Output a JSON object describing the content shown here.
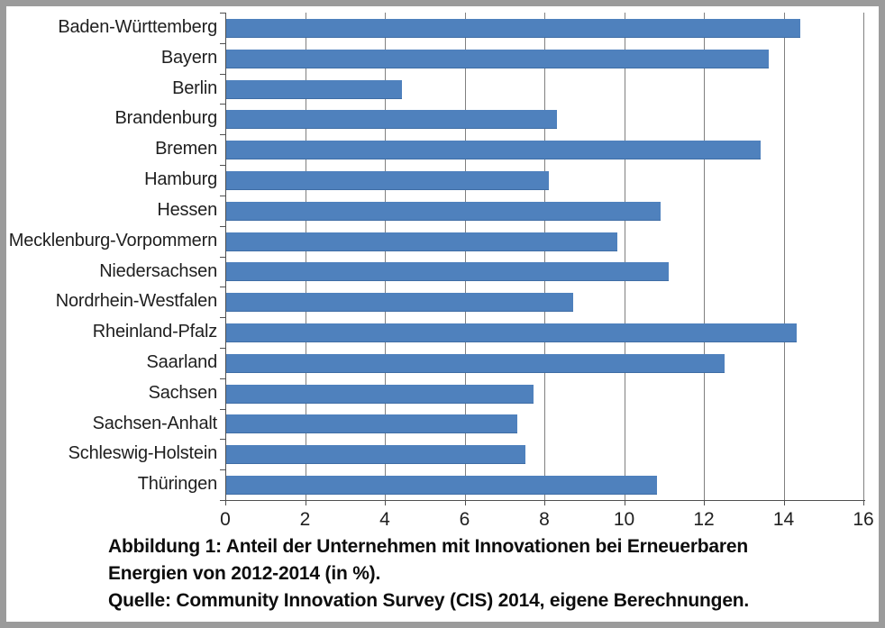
{
  "frame": {
    "border_color": "#9b9b9b",
    "background_color": "#ffffff"
  },
  "chart_data": {
    "type": "bar",
    "orientation": "horizontal",
    "title": "",
    "xlabel": "",
    "ylabel": "",
    "legend": "none",
    "grid": "vertical gridlines at every x tick",
    "categories": [
      "Baden-Württemberg",
      "Bayern",
      "Berlin",
      "Brandenburg",
      "Bremen",
      "Hamburg",
      "Hessen",
      "Mecklenburg-Vorpommern",
      "Niedersachsen",
      "Nordrhein-Westfalen",
      "Rheinland-Pfalz",
      "Saarland",
      "Sachsen",
      "Sachsen-Anhalt",
      "Schleswig-Holstein",
      "Thüringen"
    ],
    "values": [
      14.4,
      13.6,
      4.4,
      8.3,
      13.4,
      8.1,
      10.9,
      9.8,
      11.1,
      8.7,
      14.3,
      12.5,
      7.7,
      7.3,
      7.5,
      10.8
    ],
    "xlim": [
      0,
      16
    ],
    "x_ticks": [
      0,
      2,
      4,
      6,
      8,
      10,
      12,
      14,
      16
    ],
    "bar_color": "#4f81bd",
    "gridline_color": "#808080",
    "axis_color": "#4f4f4f",
    "text_color": "#1f1f1f"
  },
  "caption": {
    "lines": [
      "Abbildung 1: Anteil der Unternehmen mit Innovationen bei Erneuerbaren",
      "Energien von 2012-2014 (in %).",
      "Quelle: Community Innovation Survey (CIS) 2014, eigene Berechnungen."
    ]
  }
}
